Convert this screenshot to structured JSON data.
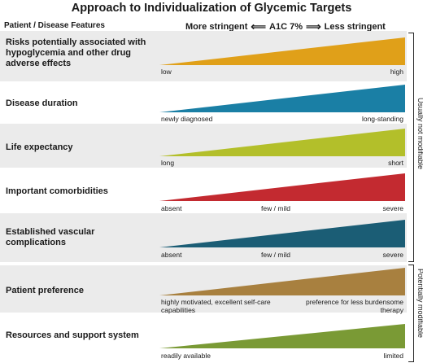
{
  "title": "Approach to Individualization of Glycemic Targets",
  "header": {
    "left": "Patient / Disease Features",
    "more": "More stringent",
    "arrow_left": "⟸",
    "target": "A1C 7%",
    "arrow_right": "⟹",
    "less": "Less stringent"
  },
  "rows": [
    {
      "feature": "Risks potentially associated with hypoglycemia and other drug adverse effects",
      "color": "#e0a019",
      "labels": {
        "left": "low",
        "right": "high"
      }
    },
    {
      "feature": "Disease duration",
      "color": "#1a7fa5",
      "labels": {
        "left": "newly diagnosed",
        "right": "long-standing"
      }
    },
    {
      "feature": "Life expectancy",
      "color": "#b3bf2a",
      "labels": {
        "left": "long",
        "right": "short"
      }
    },
    {
      "feature": "Important comorbidities",
      "color": "#c32a30",
      "labels": {
        "left": "absent",
        "mid": "few / mild",
        "right": "severe"
      }
    },
    {
      "feature": "Established vascular complications",
      "color": "#1b5d75",
      "labels": {
        "left": "absent",
        "mid": "few / mild",
        "right": "severe"
      }
    },
    {
      "feature": "Patient preference",
      "color": "#a8803f",
      "labels": {
        "left": "highly motivated, excellent self-care capabilities",
        "right": "preference for less burdensome therapy"
      }
    },
    {
      "feature": "Resources and support system",
      "color": "#7a9a35",
      "labels": {
        "left": "readily available",
        "right": "limited"
      }
    }
  ],
  "groups": {
    "not_modifiable": "Usually not modifiable",
    "modifiable": "Potentially modifiable"
  }
}
